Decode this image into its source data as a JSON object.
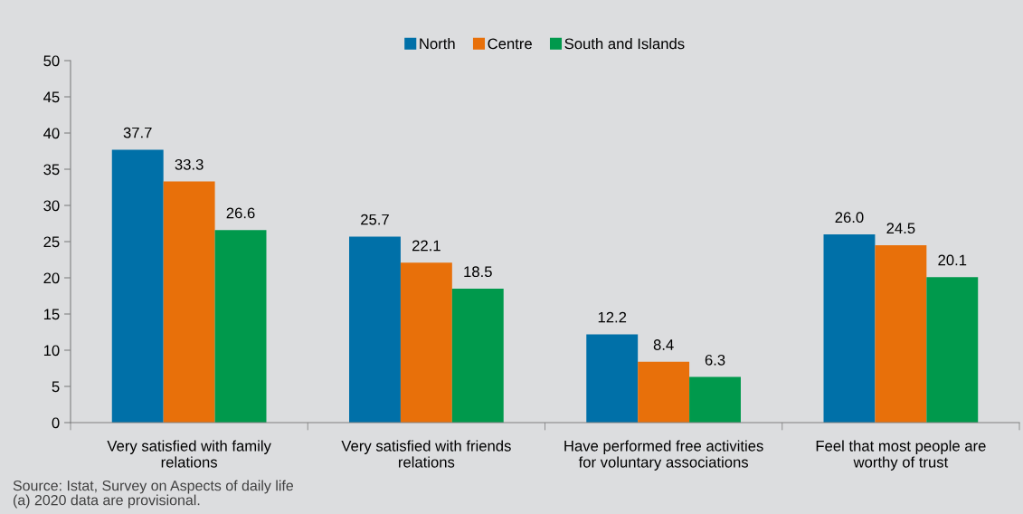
{
  "chart_data": {
    "type": "bar",
    "categories": [
      "Very satisfied with family\nrelations",
      "Very satisfied with friends\nrelations",
      "Have performed free activities\nfor voluntary associations",
      "Feel that most people are\nworthy of trust"
    ],
    "series": [
      {
        "name": "North",
        "color": "#0070a8",
        "values": [
          37.7,
          25.7,
          12.2,
          26.0
        ],
        "value_labels": [
          "37.7",
          "25.7",
          "12.2",
          "26.0"
        ]
      },
      {
        "name": "Centre",
        "color": "#e8700a",
        "values": [
          33.3,
          22.1,
          8.4,
          24.5
        ],
        "value_labels": [
          "33.3",
          "22.1",
          "8.4",
          "24.5"
        ]
      },
      {
        "name": "South and Islands",
        "color": "#00994c",
        "values": [
          26.6,
          18.5,
          6.3,
          20.1
        ],
        "value_labels": [
          "26.6",
          "18.5",
          "6.3",
          "20.1"
        ]
      }
    ],
    "ylim": [
      0,
      50
    ],
    "yticks": [
      0,
      5,
      10,
      15,
      20,
      25,
      30,
      35,
      40,
      45,
      50
    ],
    "grid": false,
    "legend": "top",
    "annotations": [
      "Source: Istat, Survey on Aspects of daily life",
      "(a) 2020 data are provisional."
    ]
  }
}
